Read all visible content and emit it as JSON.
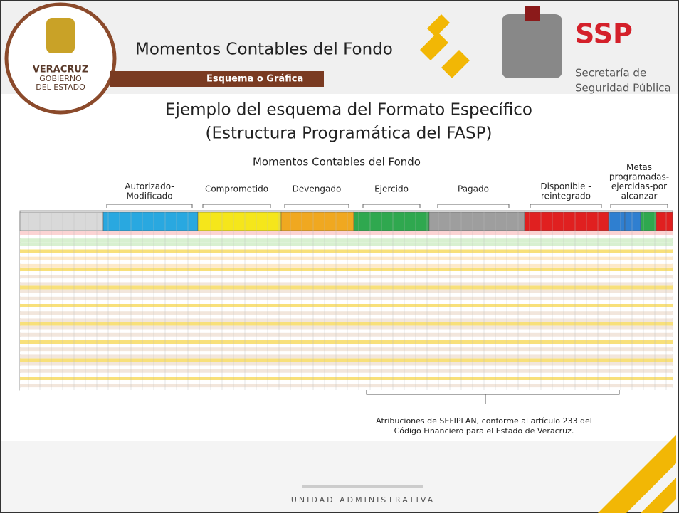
{
  "header": {
    "title": "Momentos Contables del Fondo",
    "subtitle": "Esquema o Gráfica",
    "left_logo": [
      "VERACRUZ",
      "GOBIERNO",
      "DEL ESTADO"
    ],
    "right_logo": {
      "acronym": "SSP",
      "name": [
        "Secretaría de",
        "Seguridad Pública"
      ]
    }
  },
  "slide": {
    "title": [
      "Ejemplo del esquema del Formato Específico",
      "(Estructura Programática del FASP)"
    ],
    "subtitle": "Momentos Contables del Fondo",
    "column_groups": [
      [
        "Autorizado-",
        "Modificado"
      ],
      [
        "Comprometido"
      ],
      [
        "Devengado"
      ],
      [
        "Ejercido"
      ],
      [
        "Pagado"
      ],
      [
        "Disponible -",
        "reintegrado"
      ],
      [
        "Metas",
        "programadas-",
        "ejercidas-por",
        "alcanzar"
      ]
    ],
    "note": [
      "Atribuciones de SEFIPLAN, conforme al artículo 233 del",
      "Código Financiero para el Estado de Veracruz."
    ]
  },
  "footer": "UNIDAD ADMINISTRATIVA"
}
